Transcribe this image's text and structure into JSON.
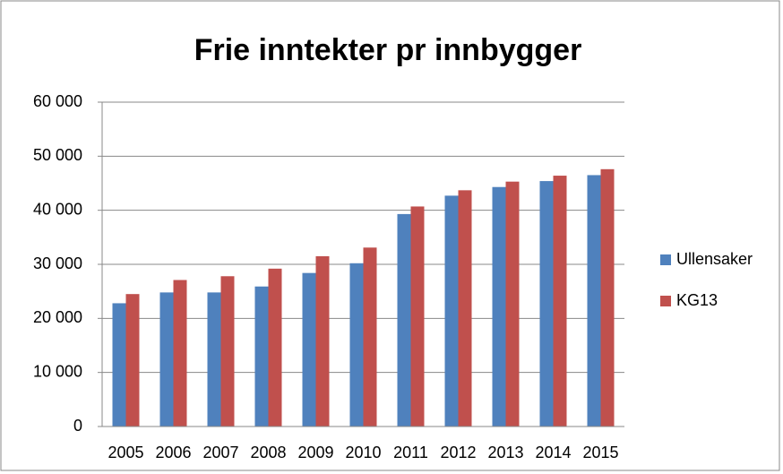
{
  "chart_data": {
    "type": "bar",
    "title": "Frie inntekter pr innbygger",
    "categories": [
      "2005",
      "2006",
      "2007",
      "2008",
      "2009",
      "2010",
      "2011",
      "2012",
      "2013",
      "2014",
      "2015"
    ],
    "series": [
      {
        "name": "Ullensaker",
        "color": "#4f81bd",
        "values": [
          22800,
          24800,
          24800,
          25900,
          28400,
          30200,
          39300,
          42700,
          44300,
          45400,
          46500
        ]
      },
      {
        "name": "KG13",
        "color": "#c0504d",
        "values": [
          24500,
          27100,
          27800,
          29200,
          31500,
          33100,
          40700,
          43700,
          45300,
          46400,
          47600
        ]
      }
    ],
    "ylim": [
      0,
      60000
    ],
    "yticks": [
      0,
      {
        "value": 10000,
        "label": "10 000"
      },
      {
        "value": 20000,
        "label": "20 000"
      },
      {
        "value": 30000,
        "label": "30 000"
      },
      {
        "value": 40000,
        "label": "40 000"
      },
      {
        "value": 50000,
        "label": "50 000"
      },
      {
        "value": 60000,
        "label": "60 000"
      }
    ],
    "grid": true,
    "legend": "right"
  }
}
